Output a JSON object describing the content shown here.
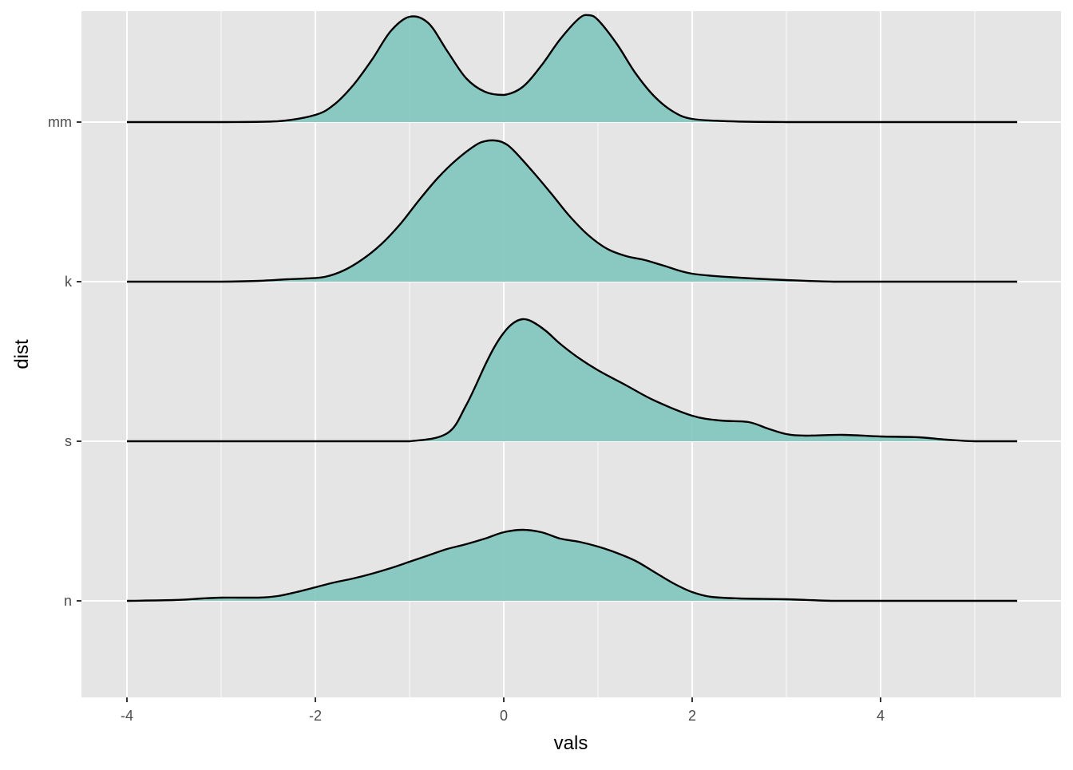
{
  "chart_data": {
    "type": "ridgeline",
    "xlabel": "vals",
    "ylabel": "dist",
    "x_ticks": [
      -4,
      -2,
      0,
      2,
      4
    ],
    "xlim": [
      -4.48,
      5.9
    ],
    "fill_color": "#7FC5BD",
    "line_color": "#000000",
    "panel_background": "#E5E5E5",
    "grid_color": "#FFFFFF",
    "tick_label_color": "#4D4D4D",
    "grid": true,
    "legend": "none",
    "series": [
      {
        "name": "n",
        "x": [
          -4.0,
          -3.5,
          -3.2,
          -3.0,
          -2.8,
          -2.6,
          -2.4,
          -2.2,
          -2.0,
          -1.8,
          -1.6,
          -1.4,
          -1.2,
          -1.0,
          -0.8,
          -0.6,
          -0.4,
          -0.2,
          0.0,
          0.2,
          0.4,
          0.6,
          0.8,
          1.0,
          1.2,
          1.4,
          1.6,
          1.8,
          2.0,
          2.2,
          2.5,
          3.0,
          3.5,
          4.0,
          4.5,
          5.0,
          5.45
        ],
        "y": [
          0.0,
          0.01,
          0.03,
          0.04,
          0.04,
          0.04,
          0.06,
          0.11,
          0.17,
          0.23,
          0.28,
          0.34,
          0.41,
          0.49,
          0.57,
          0.65,
          0.71,
          0.78,
          0.86,
          0.89,
          0.86,
          0.78,
          0.74,
          0.68,
          0.6,
          0.5,
          0.36,
          0.22,
          0.11,
          0.05,
          0.03,
          0.02,
          0.0,
          0.0,
          0.0,
          0.0,
          0.0
        ]
      },
      {
        "name": "s",
        "x": [
          -4.0,
          -3.0,
          -2.0,
          -1.5,
          -1.0,
          -0.6,
          -0.4,
          -0.2,
          -0.1,
          0.0,
          0.1,
          0.2,
          0.3,
          0.45,
          0.6,
          0.8,
          1.0,
          1.3,
          1.6,
          2.0,
          2.3,
          2.6,
          2.8,
          3.0,
          3.2,
          3.6,
          4.0,
          4.4,
          4.7,
          5.0,
          5.45
        ],
        "y": [
          0.0,
          0.0,
          0.0,
          0.0,
          0.0,
          0.1,
          0.45,
          0.95,
          1.18,
          1.36,
          1.48,
          1.53,
          1.5,
          1.38,
          1.22,
          1.04,
          0.89,
          0.7,
          0.51,
          0.32,
          0.26,
          0.24,
          0.16,
          0.09,
          0.07,
          0.08,
          0.06,
          0.05,
          0.02,
          0.0,
          0.0
        ]
      },
      {
        "name": "k",
        "x": [
          -4.0,
          -3.0,
          -2.6,
          -2.3,
          -2.1,
          -1.9,
          -1.7,
          -1.5,
          -1.3,
          -1.1,
          -0.9,
          -0.7,
          -0.5,
          -0.3,
          -0.2,
          -0.1,
          0.0,
          0.1,
          0.3,
          0.5,
          0.7,
          0.9,
          1.1,
          1.3,
          1.5,
          1.7,
          2.0,
          2.5,
          3.0,
          3.5,
          4.0,
          5.45
        ],
        "y": [
          0.0,
          0.0,
          0.01,
          0.03,
          0.04,
          0.06,
          0.14,
          0.28,
          0.47,
          0.72,
          1.02,
          1.3,
          1.53,
          1.71,
          1.76,
          1.77,
          1.74,
          1.65,
          1.39,
          1.11,
          0.82,
          0.58,
          0.41,
          0.32,
          0.27,
          0.2,
          0.1,
          0.05,
          0.02,
          0.0,
          0.0,
          0.0
        ]
      },
      {
        "name": "mm",
        "x": [
          -4.0,
          -3.0,
          -2.4,
          -2.0,
          -1.8,
          -1.6,
          -1.4,
          -1.2,
          -1.0,
          -0.8,
          -0.6,
          -0.4,
          -0.2,
          0.0,
          0.2,
          0.4,
          0.6,
          0.8,
          0.9,
          1.0,
          1.2,
          1.4,
          1.6,
          1.8,
          2.0,
          2.4,
          3.0,
          4.0,
          5.45
        ],
        "y": [
          0.0,
          0.0,
          0.01,
          0.09,
          0.22,
          0.46,
          0.78,
          1.14,
          1.32,
          1.24,
          0.89,
          0.55,
          0.38,
          0.34,
          0.44,
          0.71,
          1.04,
          1.3,
          1.34,
          1.28,
          0.98,
          0.61,
          0.32,
          0.13,
          0.04,
          0.01,
          0.0,
          0.0,
          0.0
        ]
      }
    ]
  }
}
